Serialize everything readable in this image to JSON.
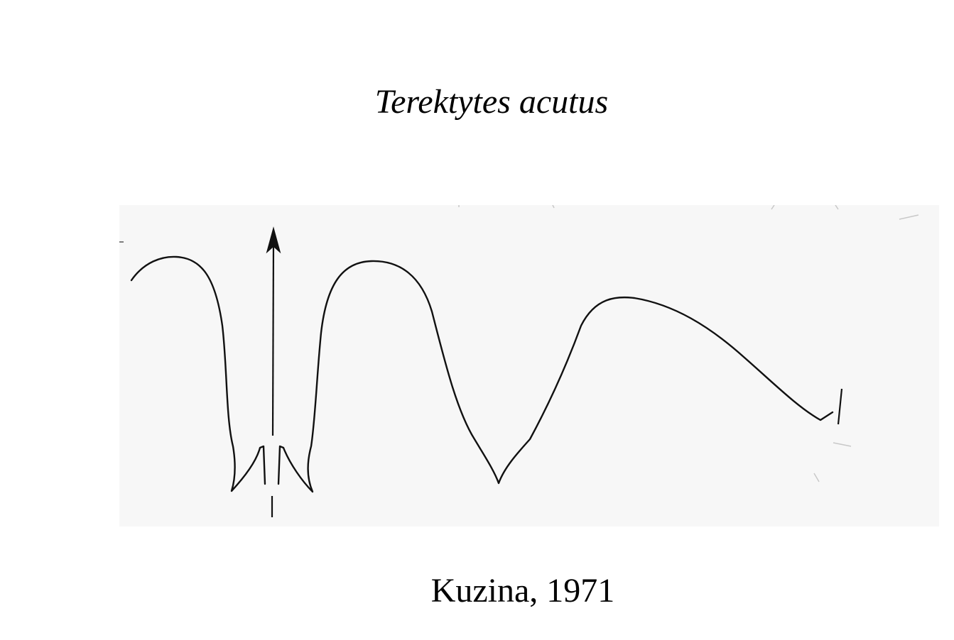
{
  "slide": {
    "title": "Terektytes acutus",
    "caption": "Kuzina, 1971"
  },
  "figure": {
    "description_icon": "suture-line-drawing",
    "colors": {
      "line": "#111111",
      "panel": "#f7f7f7"
    }
  }
}
